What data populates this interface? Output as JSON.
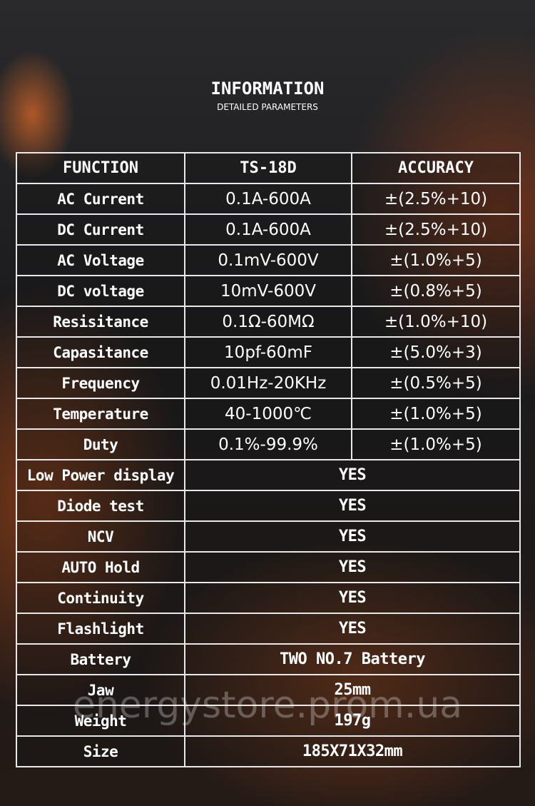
{
  "header": {
    "title": "INFORMATION",
    "subtitle": "DETAILED PARAMETERS"
  },
  "table": {
    "columns": [
      "FUNCTION",
      "TS-18D",
      "ACCURACY"
    ],
    "rows": [
      [
        "AC Current",
        "0.1A-600A",
        "±(2.5%+10)"
      ],
      [
        "DC Current",
        "0.1A-600A",
        "±(2.5%+10)"
      ],
      [
        "AC Voltage",
        "0.1mV-600V",
        "±(1.0%+5)"
      ],
      [
        "DC voltage",
        "10mV-600V",
        "±(0.8%+5)"
      ],
      [
        "Resisitance",
        "0.1Ω-60MΩ",
        "±(1.0%+10)"
      ],
      [
        "Capasitance",
        "10pf-60mF",
        "±(5.0%+3)"
      ],
      [
        "Frequency",
        "0.01Hz-20KHz",
        "±(0.5%+5)"
      ],
      [
        "Temperature",
        "40-1000℃",
        "±(1.0%+5)"
      ],
      [
        "Duty",
        "0.1%-99.9%",
        "±(1.0%+5)"
      ],
      [
        "Low Power display",
        "YES"
      ],
      [
        "Diode test",
        "YES"
      ],
      [
        "NCV",
        "YES"
      ],
      [
        "AUTO Hold",
        "YES"
      ],
      [
        "Continuity",
        "YES"
      ],
      [
        "Flashlight",
        "YES"
      ],
      [
        "Battery",
        "TWO NO.7 Battery"
      ],
      [
        "Jaw",
        "25mm"
      ],
      [
        "Weight",
        "197g"
      ],
      [
        "Size",
        "185X71X32mm"
      ]
    ]
  },
  "watermark": "energystore.prom.ua"
}
